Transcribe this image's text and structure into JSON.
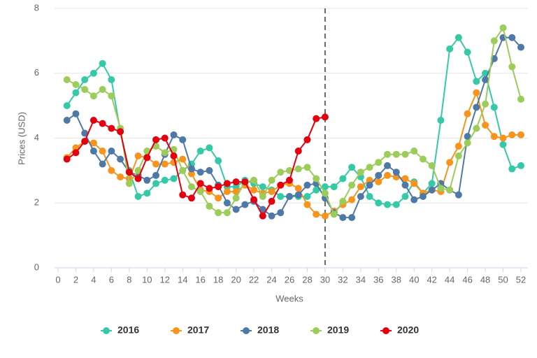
{
  "chart_data": {
    "type": "line",
    "x_label": "Weeks",
    "y_label": "Prices (USD)",
    "x": [
      1,
      2,
      3,
      4,
      5,
      6,
      7,
      8,
      9,
      10,
      11,
      12,
      13,
      14,
      15,
      16,
      17,
      18,
      19,
      20,
      21,
      22,
      23,
      24,
      25,
      26,
      27,
      28,
      29,
      30,
      31,
      32,
      33,
      34,
      35,
      36,
      37,
      38,
      39,
      40,
      41,
      42,
      43,
      44,
      45,
      46,
      47,
      48,
      49,
      50,
      51,
      52
    ],
    "xlim": [
      0,
      52
    ],
    "xticks": [
      0,
      2,
      4,
      6,
      8,
      10,
      12,
      14,
      16,
      18,
      20,
      22,
      24,
      26,
      28,
      30,
      32,
      34,
      36,
      38,
      40,
      42,
      44,
      46,
      48,
      50,
      52
    ],
    "ylim": [
      0,
      8
    ],
    "yticks": [
      0,
      2,
      4,
      6,
      8
    ],
    "grid": true,
    "vline": 30,
    "legend": "bottom",
    "series": [
      {
        "name": "2016",
        "color": "#36c9a8",
        "values": [
          5.0,
          5.4,
          5.8,
          6.0,
          6.3,
          5.8,
          4.2,
          3.0,
          2.2,
          2.3,
          2.6,
          2.7,
          2.75,
          3.0,
          3.2,
          3.6,
          3.7,
          3.3,
          2.5,
          2.5,
          2.7,
          2.6,
          2.5,
          2.4,
          2.2,
          2.2,
          2.2,
          2.2,
          2.4,
          2.5,
          2.5,
          2.75,
          3.1,
          2.8,
          2.2,
          2.0,
          1.95,
          1.95,
          2.2,
          2.65,
          2.3,
          2.6,
          4.55,
          6.75,
          7.1,
          6.65,
          5.75,
          6.0,
          4.95,
          3.8,
          3.05,
          3.15
        ]
      },
      {
        "name": "2017",
        "color": "#f7941d",
        "values": [
          3.4,
          3.7,
          3.9,
          3.85,
          3.6,
          3.0,
          2.8,
          2.75,
          3.45,
          3.4,
          3.2,
          3.2,
          3.25,
          3.35,
          2.9,
          2.4,
          2.35,
          2.15,
          2.35,
          2.35,
          2.55,
          2.4,
          2.3,
          2.35,
          2.55,
          2.6,
          2.45,
          1.95,
          1.65,
          1.6,
          1.75,
          1.95,
          2.1,
          2.5,
          2.7,
          2.65,
          2.85,
          2.8,
          2.75,
          2.6,
          2.3,
          2.4,
          2.35,
          3.25,
          3.75,
          4.75,
          5.4,
          4.4,
          4.05,
          4.0,
          4.1,
          4.1
        ]
      },
      {
        "name": "2018",
        "color": "#4e79a7",
        "values": [
          4.55,
          4.75,
          4.15,
          3.6,
          3.2,
          3.6,
          3.35,
          2.95,
          2.85,
          2.7,
          2.85,
          3.5,
          4.1,
          3.95,
          3.05,
          2.95,
          3.0,
          2.55,
          2.0,
          1.8,
          1.95,
          2.05,
          1.8,
          1.6,
          1.7,
          2.2,
          2.25,
          2.55,
          2.6,
          2.15,
          1.7,
          1.55,
          1.55,
          2.2,
          2.55,
          2.85,
          3.15,
          2.95,
          2.55,
          2.1,
          2.2,
          2.4,
          2.6,
          2.4,
          2.25,
          4.05,
          4.95,
          5.8,
          6.45,
          7.1,
          7.1,
          6.8
        ]
      },
      {
        "name": "2019",
        "color": "#9ccc5a",
        "values": [
          5.8,
          5.65,
          5.5,
          5.3,
          5.5,
          5.3,
          4.3,
          2.6,
          3.0,
          3.6,
          3.75,
          3.55,
          3.65,
          3.0,
          2.5,
          2.35,
          1.9,
          1.7,
          1.7,
          2.15,
          2.65,
          2.7,
          2.2,
          2.7,
          2.95,
          3.0,
          3.05,
          3.1,
          2.75,
          2.3,
          1.65,
          2.05,
          2.55,
          2.95,
          3.1,
          3.25,
          3.5,
          3.5,
          3.5,
          3.6,
          3.35,
          3.15,
          2.45,
          2.4,
          3.45,
          3.85,
          4.3,
          5.05,
          7.0,
          7.4,
          6.2,
          5.2
        ]
      },
      {
        "name": "2020",
        "color": "#e3000f",
        "values": [
          3.35,
          3.55,
          3.9,
          4.55,
          4.45,
          4.3,
          4.2,
          2.95,
          2.75,
          3.4,
          3.95,
          4.0,
          3.45,
          2.25,
          2.15,
          2.6,
          2.45,
          2.5,
          2.6,
          2.65,
          2.65,
          2.1,
          1.6,
          2.05,
          2.55,
          2.7,
          3.6,
          3.95,
          4.6,
          4.65,
          null,
          null,
          null,
          null,
          null,
          null,
          null,
          null,
          null,
          null,
          null,
          null,
          null,
          null,
          null,
          null,
          null,
          null,
          null,
          null,
          null,
          null
        ]
      }
    ]
  }
}
